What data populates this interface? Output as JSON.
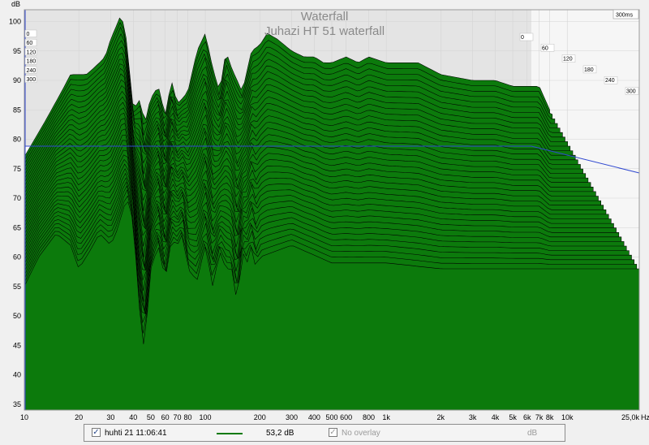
{
  "chart_data": {
    "type": "area",
    "title": "Waterfall",
    "subtitle": "Juhazi HT 51 waterfall",
    "ylabel": "dB",
    "xunit": "Hz",
    "zmax_label": "300ms",
    "xscale": "log",
    "xlim": [
      10,
      25000
    ],
    "ylim": [
      34,
      102
    ],
    "yticks": [
      "35",
      "40",
      "45",
      "50",
      "55",
      "60",
      "65",
      "70",
      "75",
      "80",
      "85",
      "90",
      "95",
      "100"
    ],
    "xticks": [
      "10",
      "20",
      "30",
      "40",
      "50",
      "60",
      "70",
      "80",
      "100",
      "200",
      "300",
      "400",
      "500",
      "600",
      "800",
      "1k",
      "2k",
      "3k",
      "4k",
      "5k",
      "6k",
      "7k",
      "8k",
      "10k",
      "25,0k"
    ],
    "zticks": [
      "0",
      "60",
      "120",
      "180",
      "240",
      "300"
    ],
    "fill_color": "#0c7a0c",
    "line_color": "#000000",
    "front_slice": {
      "x": [
        10,
        12,
        15,
        18,
        20,
        23,
        26,
        28,
        30,
        33,
        35,
        37,
        40,
        43,
        46,
        50,
        55,
        60,
        65,
        70,
        75,
        80,
        90,
        100,
        110,
        120,
        130,
        140,
        150,
        160,
        170,
        180,
        190,
        200,
        300,
        500,
        700,
        1000,
        2000,
        4000,
        6000,
        8000,
        10000,
        12000,
        14000,
        16000,
        18000,
        20000,
        22000,
        25000
      ],
      "y": [
        55,
        60,
        64,
        62,
        58,
        61,
        64,
        63,
        62,
        65,
        68,
        70,
        66,
        52,
        44,
        58,
        62,
        56,
        63,
        62,
        64,
        58,
        56,
        62,
        55,
        61,
        58,
        58,
        52,
        61,
        59,
        62,
        58,
        60,
        62,
        59,
        59,
        59,
        58,
        58,
        58,
        58,
        58,
        58,
        58,
        58,
        58,
        58,
        58,
        58
      ]
    },
    "back_slice": {
      "x": [
        10,
        13,
        16,
        18,
        20,
        22,
        24,
        26,
        28,
        30,
        32,
        34,
        36,
        38,
        40,
        42,
        44,
        46,
        48,
        50,
        55,
        60,
        65,
        70,
        75,
        80,
        90,
        100,
        110,
        120,
        130,
        140,
        150,
        160,
        180,
        200,
        220,
        250,
        300,
        350,
        400,
        450,
        500,
        600,
        700,
        800,
        1000,
        1500,
        2000,
        3000,
        4000,
        5000,
        6000,
        7000,
        8000
      ],
      "y": [
        77,
        83,
        88,
        91,
        91,
        91,
        92,
        93,
        94,
        97,
        99,
        101,
        99,
        92,
        85,
        86,
        87,
        82,
        85,
        87,
        89,
        84,
        90,
        86,
        87,
        88,
        95,
        98,
        92,
        88,
        95,
        92,
        90,
        88,
        95,
        96,
        98,
        97,
        95,
        94,
        94,
        93,
        93,
        94,
        93,
        94,
        93,
        93,
        91,
        90,
        90,
        89,
        89,
        89,
        85
      ]
    }
  },
  "legend": {
    "measurement": "huhti 21 11:06:41",
    "level": "53,2 dB",
    "overlay": "No overlay",
    "unit": "dB"
  }
}
